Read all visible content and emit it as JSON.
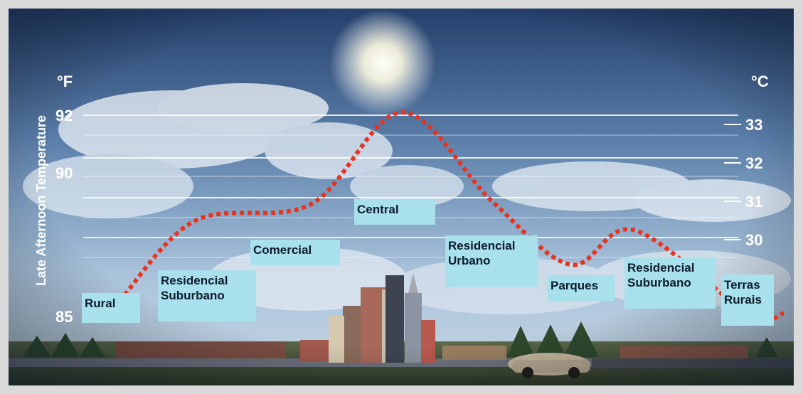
{
  "chart_data": {
    "type": "line",
    "ylabel": "Late Afternoon Temperature",
    "left_unit": "°F",
    "right_unit": "°C",
    "left_ticks": [
      "92",
      "90",
      "85"
    ],
    "right_ticks": [
      "33",
      "32",
      "31",
      "30"
    ],
    "zones": [
      "Rural",
      "Residencial\nSuburbano",
      "Comercial",
      "Central",
      "Residencial\nUrbano",
      "Parques",
      "Residencial\nSuburbano",
      "Terras\nRurais"
    ],
    "series": [
      {
        "x": [
          "Rural",
          "Residencial Suburbano",
          "Comercial",
          "Central",
          "Residencial Urbano",
          "Parques",
          "Residencial Suburbano",
          "Terras Rurais"
        ],
        "values": [
          85.1,
          88.3,
          88.9,
          92.1,
          89.0,
          86.8,
          88.0,
          85.1
        ]
      }
    ],
    "colors": {
      "curve": "#e8331f",
      "label_bg": "#a8e0ec",
      "axis_text": "#ffffff"
    }
  }
}
